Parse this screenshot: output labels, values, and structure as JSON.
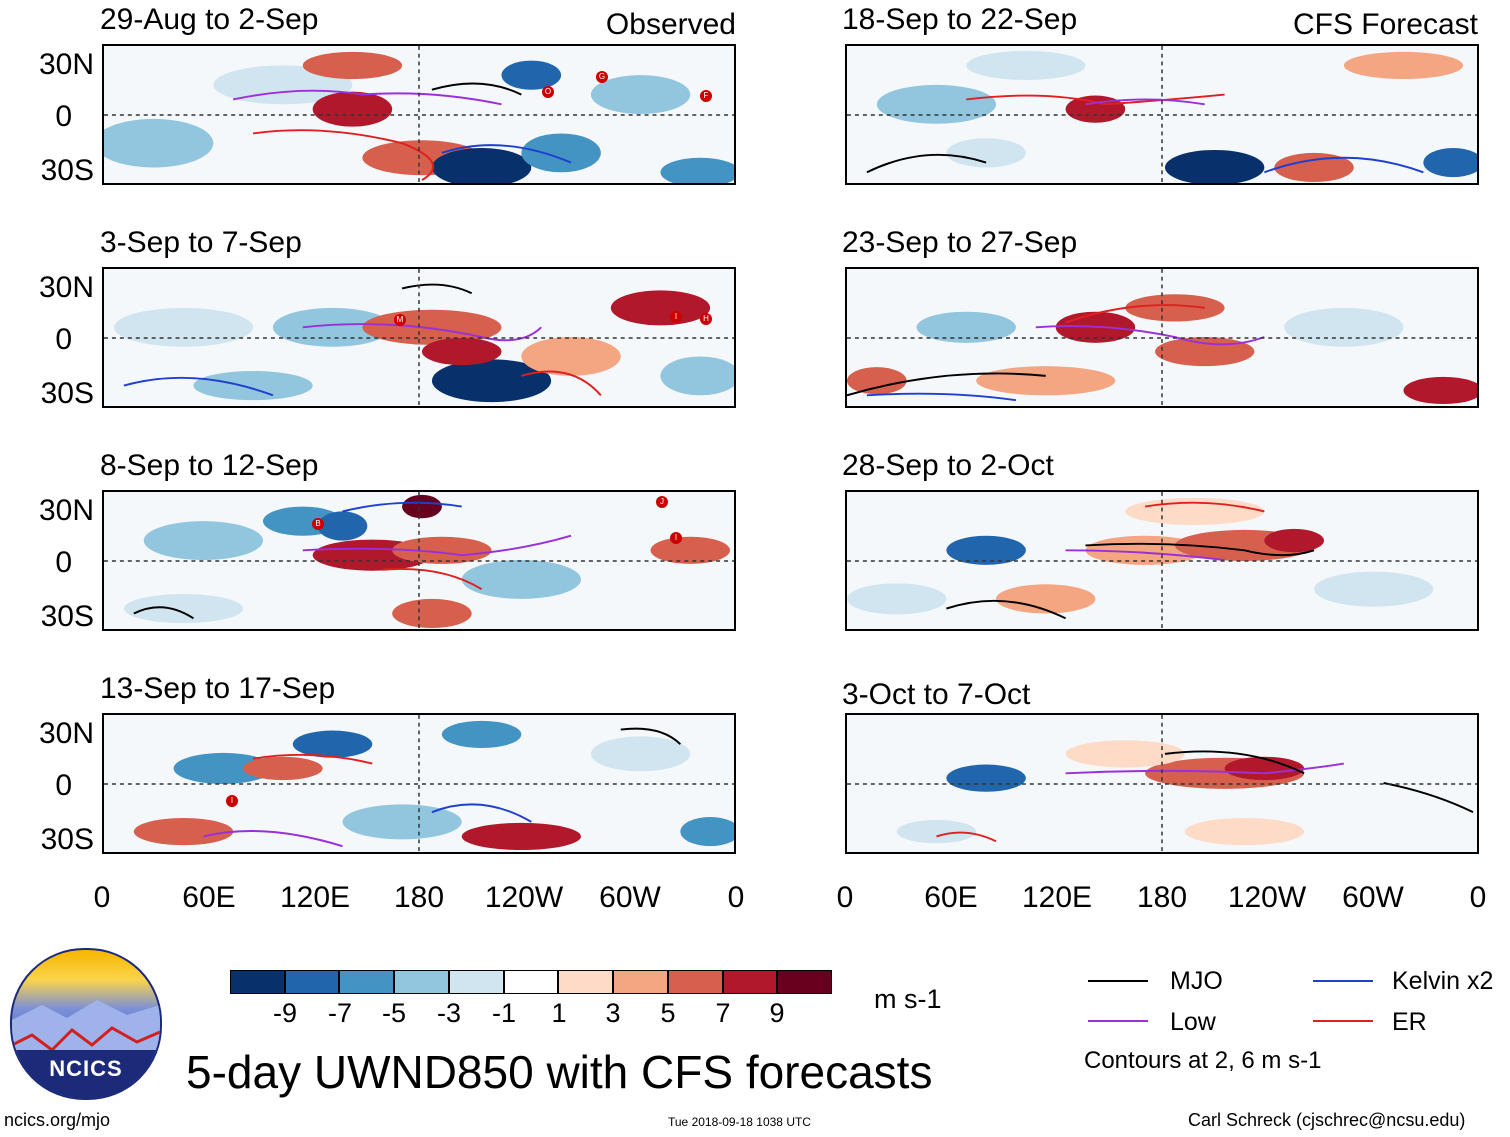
{
  "header": {
    "observed_label": "Observed",
    "forecast_label": "CFS Forecast"
  },
  "panels": {
    "observed": [
      {
        "title": "29-Aug to 2-Sep"
      },
      {
        "title": "3-Sep to 7-Sep"
      },
      {
        "title": "8-Sep to 12-Sep"
      },
      {
        "title": "13-Sep to 17-Sep"
      }
    ],
    "forecast": [
      {
        "title": "18-Sep to 22-Sep"
      },
      {
        "title": "23-Sep to 27-Sep"
      },
      {
        "title": "28-Sep to 2-Oct"
      },
      {
        "title": "3-Oct to 7-Oct"
      }
    ]
  },
  "axes": {
    "lat_labels": [
      "30N",
      "0",
      "30S"
    ],
    "lon_labels": [
      "0",
      "60E",
      "120E",
      "180",
      "120W",
      "60W",
      "0"
    ]
  },
  "storms": {
    "p1": [
      "O",
      "G",
      "F"
    ],
    "p2": [
      "M",
      "I",
      "H"
    ],
    "p3": [
      "B",
      "J",
      "I"
    ],
    "p4": [
      "I"
    ]
  },
  "colorbar": {
    "colors": [
      "#08306b",
      "#2166ac",
      "#4393c3",
      "#92c5de",
      "#d1e5f0",
      "#ffffff",
      "#fddbc7",
      "#f4a582",
      "#d6604d",
      "#b2182b",
      "#67001f"
    ],
    "ticks": [
      "-9",
      "-7",
      "-5",
      "-3",
      "-1",
      "1",
      "3",
      "5",
      "7",
      "9"
    ],
    "unit": "m s-1"
  },
  "legend": {
    "mjo": {
      "label": "MJO",
      "color": "#000000"
    },
    "kelvin": {
      "label": "Kelvin x2",
      "color": "#1f3fd0"
    },
    "low": {
      "label": "Low",
      "color": "#9b30d9"
    },
    "er": {
      "label": "ER",
      "color": "#e02020"
    },
    "contours_note": "Contours at 2, 6 m s-1"
  },
  "logo": {
    "text": "NCICS"
  },
  "main_title": "5-day UWND850 with CFS forecasts",
  "footer": {
    "url": "ncics.org/mjo",
    "timestamp": "Tue 2018-09-18 1038 UTC",
    "credit": "Carl Schreck (cjschrec@ncsu.edu)"
  }
}
